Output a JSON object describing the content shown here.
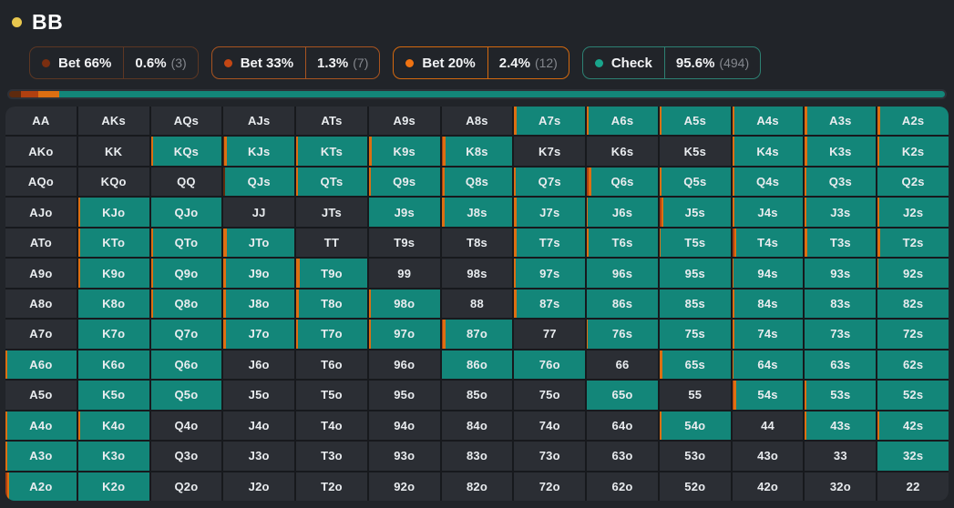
{
  "header": {
    "player": "BB",
    "dot_color": "#e8c74e"
  },
  "actions": [
    {
      "id": "bet66",
      "label": "Bet 66%",
      "pct": "0.6%",
      "count": "(3)",
      "dot": "#7a2e10",
      "border": "#5d3723"
    },
    {
      "id": "bet33",
      "label": "Bet 33%",
      "pct": "1.3%",
      "count": "(7)",
      "dot": "#c44714",
      "border": "#a85420"
    },
    {
      "id": "bet20",
      "label": "Bet 20%",
      "pct": "2.4%",
      "count": "(12)",
      "dot": "#f07312",
      "border": "#d4690f"
    },
    {
      "id": "check",
      "label": "Check",
      "pct": "95.6%",
      "count": "(494)",
      "dot": "#19a58c",
      "border": "#2d8173"
    }
  ],
  "bar": {
    "segments": [
      {
        "action": "bet66",
        "width": 1.3
      },
      {
        "action": "bet33",
        "width": 1.8
      },
      {
        "action": "bet20",
        "width": 2.3
      },
      {
        "action": "check",
        "width": 94.6
      }
    ]
  },
  "colors": {
    "b66": "#5e2a0e",
    "b33": "#b04010",
    "b20": "#dd6f12",
    "check": "#138679",
    "none": "#2b2e34"
  },
  "grid": {
    "rows": [
      [
        [
          "AA",
          0
        ],
        [
          "AKs",
          0
        ],
        [
          "AQs",
          0
        ],
        [
          "AJs",
          0
        ],
        [
          "ATs",
          0
        ],
        [
          "A9s",
          0
        ],
        [
          "A8s",
          0
        ],
        [
          "A7s",
          1,
          [
            [
              "b20",
              3
            ]
          ]
        ],
        [
          "A6s",
          1,
          [
            [
              "b20",
              2
            ]
          ]
        ],
        [
          "A5s",
          1,
          [
            [
              "b20",
              3
            ]
          ]
        ],
        [
          "A4s",
          1,
          [
            [
              "b20",
              3.5
            ]
          ]
        ],
        [
          "A3s",
          1,
          [
            [
              "b20",
              3
            ]
          ]
        ],
        [
          "A2s",
          1,
          [
            [
              "b20",
              3
            ]
          ]
        ]
      ],
      [
        [
          "AKo",
          0
        ],
        [
          "KK",
          0
        ],
        [
          "KQs",
          1,
          [
            [
              "b20",
              3
            ]
          ]
        ],
        [
          "KJs",
          1,
          [
            [
              "b66",
              1.5
            ],
            [
              "b20",
              3
            ]
          ]
        ],
        [
          "KTs",
          1,
          [
            [
              "b20",
              3
            ]
          ]
        ],
        [
          "K9s",
          1,
          [
            [
              "b20",
              3.5
            ]
          ]
        ],
        [
          "K8s",
          1,
          [
            [
              "b33",
              1.5
            ],
            [
              "b20",
              4.5
            ]
          ]
        ],
        [
          "K7s",
          0
        ],
        [
          "K6s",
          0
        ],
        [
          "K5s",
          0
        ],
        [
          "K4s",
          1,
          [
            [
              "b20",
              3.5
            ]
          ]
        ],
        [
          "K3s",
          1,
          [
            [
              "b20",
              3
            ]
          ]
        ],
        [
          "K2s",
          1,
          [
            [
              "b20",
              2
            ]
          ]
        ]
      ],
      [
        [
          "AQo",
          0
        ],
        [
          "KQo",
          0
        ],
        [
          "QQ",
          0
        ],
        [
          "QJs",
          1,
          [
            [
              "b66",
              2
            ]
          ]
        ],
        [
          "QTs",
          1,
          [
            [
              "b20",
              3
            ]
          ]
        ],
        [
          "Q9s",
          1,
          [
            [
              "b20",
              3
            ]
          ]
        ],
        [
          "Q8s",
          1,
          [
            [
              "b33",
              1.5
            ],
            [
              "b20",
              3.5
            ]
          ]
        ],
        [
          "Q7s",
          1,
          [
            [
              "b20",
              1.5
            ]
          ]
        ],
        [
          "Q6s",
          1,
          [
            [
              "b33",
              2
            ],
            [
              "b20",
              4
            ]
          ]
        ],
        [
          "Q5s",
          1,
          [
            [
              "b20",
              3
            ]
          ]
        ],
        [
          "Q4s",
          1,
          [
            [
              "b20",
              3
            ]
          ]
        ],
        [
          "Q3s",
          1,
          [
            [
              "b20",
              1.5
            ]
          ]
        ],
        [
          "Q2s",
          1
        ]
      ],
      [
        [
          "AJo",
          0
        ],
        [
          "KJo",
          1,
          [
            [
              "b20",
              3
            ]
          ]
        ],
        [
          "QJo",
          1
        ],
        [
          "JJ",
          0
        ],
        [
          "JTs",
          0
        ],
        [
          "J9s",
          1
        ],
        [
          "J8s",
          1,
          [
            [
              "b20",
              4
            ]
          ]
        ],
        [
          "J7s",
          1,
          [
            [
              "b20",
              4
            ]
          ]
        ],
        [
          "J6s",
          1,
          [
            [
              "b20",
              1.5
            ]
          ]
        ],
        [
          "J5s",
          1,
          [
            [
              "b33",
              2.5
            ],
            [
              "b20",
              3
            ]
          ]
        ],
        [
          "J4s",
          1,
          [
            [
              "b20",
              3
            ]
          ]
        ],
        [
          "J3s",
          1,
          [
            [
              "b20",
              1.5
            ]
          ]
        ],
        [
          "J2s",
          1,
          [
            [
              "b20",
              2
            ]
          ]
        ]
      ],
      [
        [
          "ATo",
          0
        ],
        [
          "KTo",
          1,
          [
            [
              "b20",
              3
            ]
          ]
        ],
        [
          "QTo",
          1,
          [
            [
              "b20",
              3
            ]
          ]
        ],
        [
          "JTo",
          1,
          [
            [
              "b20",
              5
            ]
          ]
        ],
        [
          "TT",
          0
        ],
        [
          "T9s",
          0
        ],
        [
          "T8s",
          0
        ],
        [
          "T7s",
          1,
          [
            [
              "b20",
              4
            ]
          ]
        ],
        [
          "T6s",
          1,
          [
            [
              "b20",
              3
            ]
          ]
        ],
        [
          "T5s",
          1,
          [
            [
              "b20",
              2
            ]
          ]
        ],
        [
          "T4s",
          1,
          [
            [
              "b33",
              2.5
            ],
            [
              "b20",
              3
            ]
          ]
        ],
        [
          "T3s",
          1,
          [
            [
              "b20",
              3
            ]
          ]
        ],
        [
          "T2s",
          1,
          [
            [
              "b20",
              3
            ]
          ]
        ]
      ],
      [
        [
          "A9o",
          0
        ],
        [
          "K9o",
          1,
          [
            [
              "b20",
              3
            ]
          ]
        ],
        [
          "Q9o",
          1,
          [
            [
              "b20",
              3
            ]
          ]
        ],
        [
          "J9o",
          1,
          [
            [
              "b20",
              3
            ]
          ]
        ],
        [
          "T9o",
          1,
          [
            [
              "b20",
              5
            ]
          ]
        ],
        [
          "99",
          0
        ],
        [
          "98s",
          0
        ],
        [
          "97s",
          1,
          [
            [
              "b20",
              2
            ]
          ]
        ],
        [
          "96s",
          1
        ],
        [
          "95s",
          1
        ],
        [
          "94s",
          1,
          [
            [
              "b20",
              1.5
            ]
          ]
        ],
        [
          "93s",
          1
        ],
        [
          "92s",
          1,
          [
            [
              "b20",
              1.5
            ]
          ]
        ]
      ],
      [
        [
          "A8o",
          0
        ],
        [
          "K8o",
          1
        ],
        [
          "Q8o",
          1,
          [
            [
              "b20",
              3
            ]
          ]
        ],
        [
          "J8o",
          1,
          [
            [
              "b20",
              4
            ]
          ]
        ],
        [
          "T8o",
          1,
          [
            [
              "b20",
              4
            ]
          ]
        ],
        [
          "98o",
          1,
          [
            [
              "b20",
              3
            ]
          ]
        ],
        [
          "88",
          0
        ],
        [
          "87s",
          1,
          [
            [
              "b20",
              3
            ]
          ]
        ],
        [
          "86s",
          1
        ],
        [
          "85s",
          1
        ],
        [
          "84s",
          1,
          [
            [
              "b20",
              3
            ]
          ]
        ],
        [
          "83s",
          1
        ],
        [
          "82s",
          1
        ]
      ],
      [
        [
          "A7o",
          0
        ],
        [
          "K7o",
          1
        ],
        [
          "Q7o",
          1
        ],
        [
          "J7o",
          1,
          [
            [
              "b20",
              3
            ]
          ]
        ],
        [
          "T7o",
          1,
          [
            [
              "b20",
              3
            ]
          ]
        ],
        [
          "97o",
          1,
          [
            [
              "b20",
              3
            ]
          ]
        ],
        [
          "87o",
          1,
          [
            [
              "b33",
              1.5
            ],
            [
              "b20",
              4
            ]
          ]
        ],
        [
          "77",
          0
        ],
        [
          "76s",
          1,
          [
            [
              "b20",
              1.5
            ]
          ]
        ],
        [
          "75s",
          1
        ],
        [
          "74s",
          1,
          [
            [
              "b20",
              2.5
            ]
          ]
        ],
        [
          "73s",
          1
        ],
        [
          "72s",
          1
        ]
      ],
      [
        [
          "A6o",
          1,
          [
            [
              "b20",
              2.5
            ]
          ]
        ],
        [
          "K6o",
          1
        ],
        [
          "Q6o",
          1
        ],
        [
          "J6o",
          0
        ],
        [
          "T6o",
          0
        ],
        [
          "96o",
          0
        ],
        [
          "86o",
          1
        ],
        [
          "76o",
          1
        ],
        [
          "66",
          0
        ],
        [
          "65s",
          1,
          [
            [
              "b20",
              3.5
            ]
          ]
        ],
        [
          "64s",
          1,
          [
            [
              "b20",
              1.5
            ]
          ]
        ],
        [
          "63s",
          1
        ],
        [
          "62s",
          1
        ]
      ],
      [
        [
          "A5o",
          0
        ],
        [
          "K5o",
          1
        ],
        [
          "Q5o",
          1
        ],
        [
          "J5o",
          0
        ],
        [
          "T5o",
          0
        ],
        [
          "95o",
          0
        ],
        [
          "85o",
          0
        ],
        [
          "75o",
          0
        ],
        [
          "65o",
          1
        ],
        [
          "55",
          0
        ],
        [
          "54s",
          1,
          [
            [
              "b33",
              1.5
            ],
            [
              "b20",
              3.5
            ]
          ]
        ],
        [
          "53s",
          1,
          [
            [
              "b20",
              1.5
            ]
          ]
        ],
        [
          "52s",
          1
        ]
      ],
      [
        [
          "A4o",
          1,
          [
            [
              "b20",
              2.5
            ]
          ]
        ],
        [
          "K4o",
          1,
          [
            [
              "b20",
              2.5
            ]
          ]
        ],
        [
          "Q4o",
          0
        ],
        [
          "J4o",
          0
        ],
        [
          "T4o",
          0
        ],
        [
          "94o",
          0
        ],
        [
          "84o",
          0
        ],
        [
          "74o",
          0
        ],
        [
          "64o",
          0
        ],
        [
          "54o",
          1,
          [
            [
              "b20",
              2.5
            ]
          ]
        ],
        [
          "44",
          0
        ],
        [
          "43s",
          1,
          [
            [
              "b20",
              2.5
            ]
          ]
        ],
        [
          "42s",
          1,
          [
            [
              "b20",
              2.5
            ]
          ]
        ]
      ],
      [
        [
          "A3o",
          1,
          [
            [
              "b20",
              2.5
            ]
          ]
        ],
        [
          "K3o",
          1
        ],
        [
          "Q3o",
          0
        ],
        [
          "J3o",
          0
        ],
        [
          "T3o",
          0
        ],
        [
          "93o",
          0
        ],
        [
          "83o",
          0
        ],
        [
          "73o",
          0
        ],
        [
          "63o",
          0
        ],
        [
          "53o",
          0
        ],
        [
          "43o",
          0
        ],
        [
          "33",
          0
        ],
        [
          "32s",
          1
        ]
      ],
      [
        [
          "A2o",
          1,
          [
            [
              "b33",
              2
            ],
            [
              "b20",
              3.5
            ]
          ]
        ],
        [
          "K2o",
          1
        ],
        [
          "Q2o",
          0
        ],
        [
          "J2o",
          0
        ],
        [
          "T2o",
          0
        ],
        [
          "92o",
          0
        ],
        [
          "82o",
          0
        ],
        [
          "72o",
          0
        ],
        [
          "62o",
          0
        ],
        [
          "52o",
          0
        ],
        [
          "42o",
          0
        ],
        [
          "32o",
          0
        ],
        [
          "22",
          0
        ]
      ]
    ]
  }
}
